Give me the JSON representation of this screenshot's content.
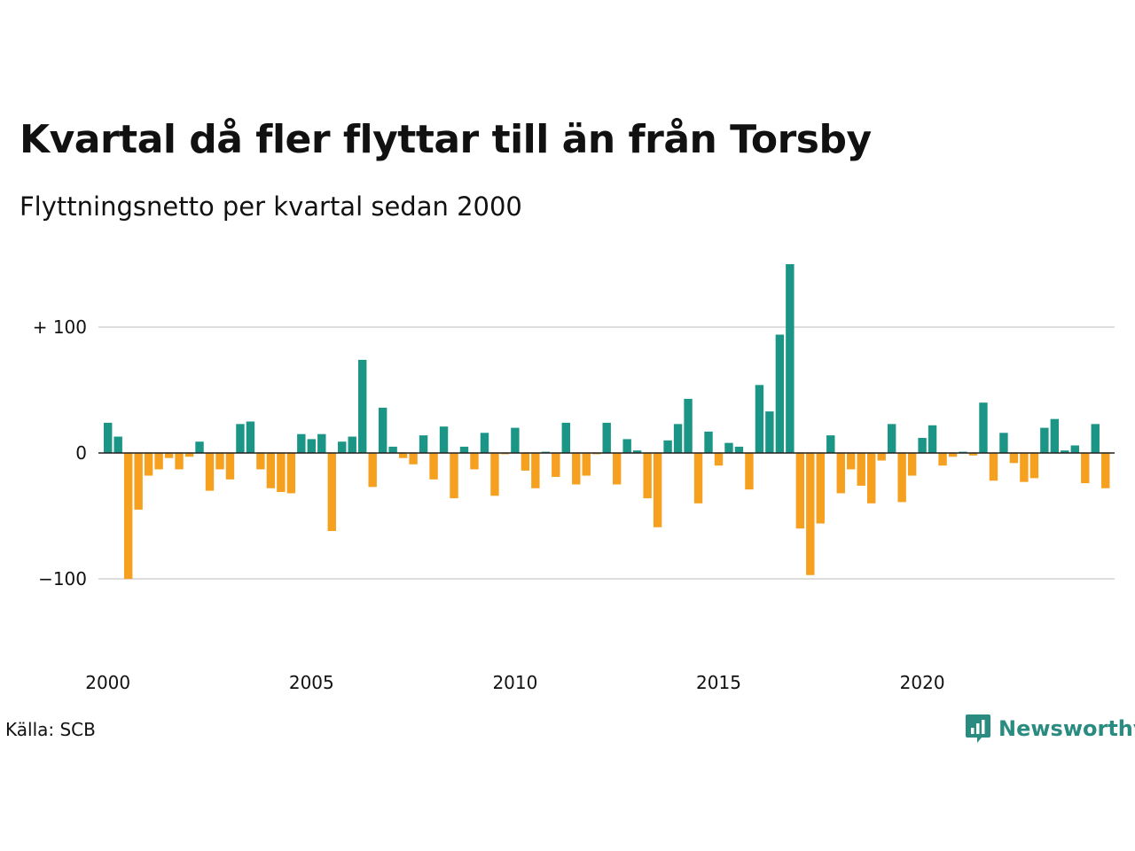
{
  "title": "Kvartal då fler flyttar till än från Torsby",
  "subtitle": "Flyttningsnetto per kvartal sedan 2000",
  "source": "Källa: SCB",
  "brand": {
    "name": "Newsworthy",
    "icon": "newsworthy-logo-icon"
  },
  "colors": {
    "positive": "#1a9586",
    "negative": "#f5a01e",
    "grid": "#dddddd",
    "text": "#111111"
  },
  "chart_data": {
    "type": "bar",
    "ylim": [
      -100,
      150
    ],
    "yticks": [
      {
        "value": 100,
        "label": "+ 100"
      },
      {
        "value": 0,
        "label": "0"
      },
      {
        "value": -100,
        "label": "−100"
      }
    ],
    "xticks": [
      {
        "year": 2000,
        "label": "2000"
      },
      {
        "year": 2005,
        "label": "2005"
      },
      {
        "year": 2010,
        "label": "2010"
      },
      {
        "year": 2015,
        "label": "2015"
      },
      {
        "year": 2020,
        "label": "2020"
      }
    ],
    "start": "2000-Q1",
    "grid": true,
    "values": [
      24,
      13,
      -100,
      -45,
      -18,
      -13,
      -4,
      -13,
      -3,
      9,
      -30,
      -13,
      -21,
      23,
      25,
      -13,
      -28,
      -31,
      -32,
      15,
      11,
      15,
      -62,
      9,
      13,
      74,
      -27,
      36,
      5,
      -4,
      -9,
      14,
      -21,
      21,
      -36,
      5,
      -13,
      16,
      -34,
      -1,
      20,
      -14,
      -28,
      1,
      -19,
      24,
      -25,
      -18,
      -1,
      24,
      -25,
      11,
      2,
      -36,
      -59,
      10,
      23,
      43,
      -40,
      17,
      -10,
      8,
      5,
      -29,
      54,
      33,
      94,
      150,
      -60,
      -97,
      -56,
      14,
      -32,
      -13,
      -26,
      -40,
      -6,
      23,
      -39,
      -18,
      12,
      22,
      -10,
      -3,
      1,
      -2,
      40,
      -22,
      16,
      -8,
      -23,
      -20,
      20,
      27,
      2,
      6,
      -24,
      23,
      -28
    ]
  }
}
